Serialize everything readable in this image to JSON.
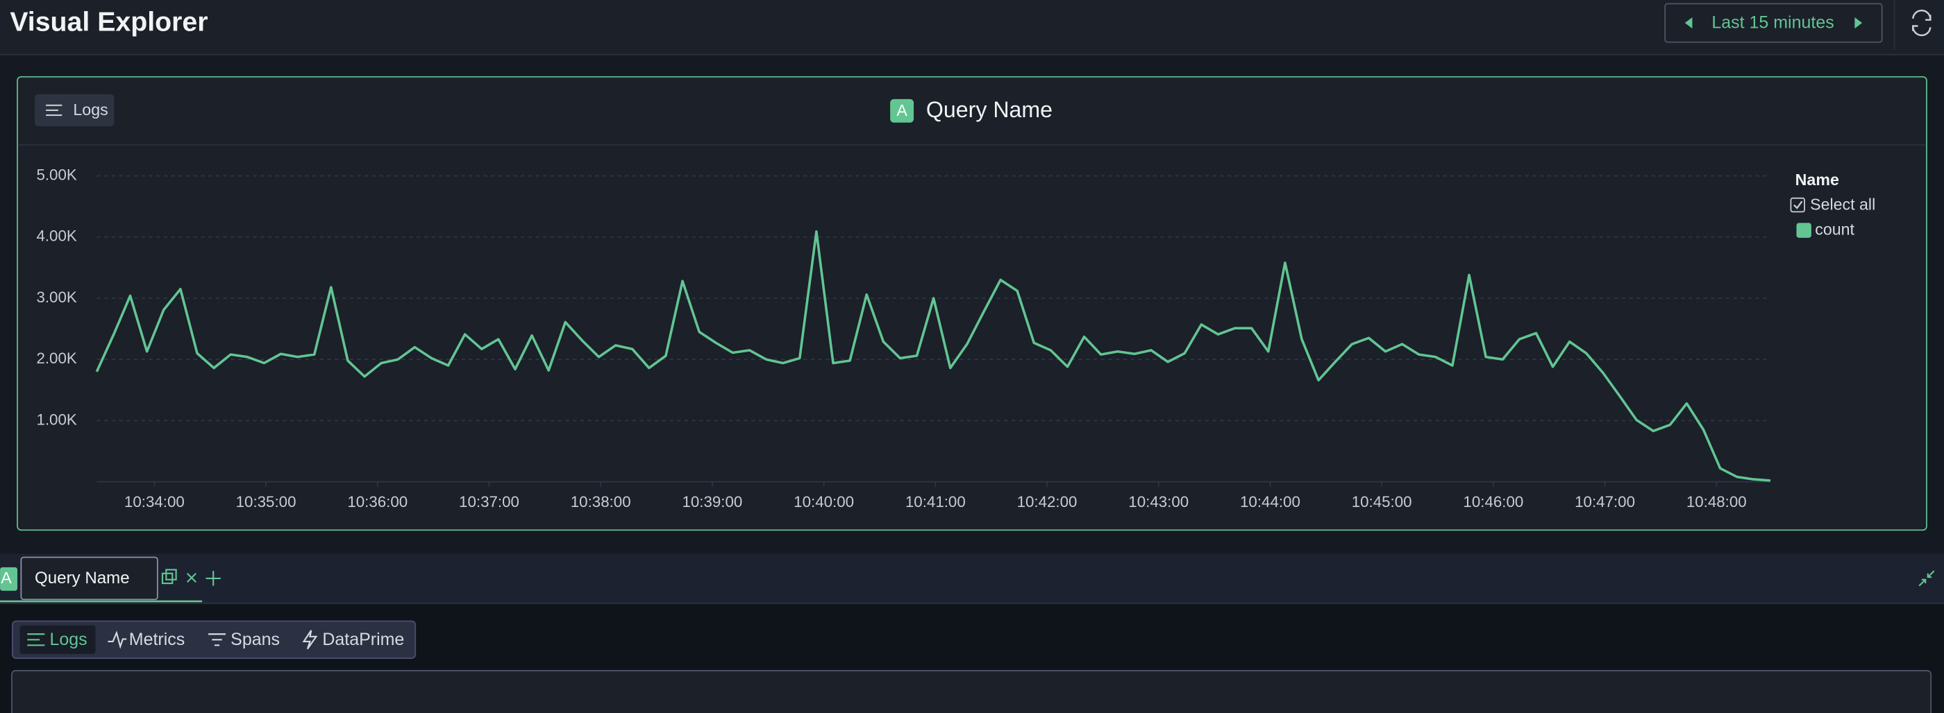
{
  "header": {
    "title": "Visual Explorer",
    "time_range": "Last 15 minutes"
  },
  "panel": {
    "source_button": "Logs"
  },
  "chart_data": {
    "type": "line",
    "badge": "A",
    "title": "Query Name",
    "legend_title": "Name",
    "legend_select_all": "Select all",
    "x": [
      "10:33:29",
      "10:33:38",
      "10:33:47",
      "10:33:56",
      "10:34:05",
      "10:34:14",
      "10:34:23",
      "10:34:32",
      "10:34:41",
      "10:34:50",
      "10:34:59",
      "10:35:08",
      "10:35:17",
      "10:35:26",
      "10:35:35",
      "10:35:44",
      "10:35:53",
      "10:36:02",
      "10:36:11",
      "10:36:20",
      "10:36:29",
      "10:36:38",
      "10:36:47",
      "10:36:56",
      "10:37:05",
      "10:37:14",
      "10:37:23",
      "10:37:32",
      "10:37:41",
      "10:37:50",
      "10:37:59",
      "10:38:08",
      "10:38:17",
      "10:38:26",
      "10:38:35",
      "10:38:44",
      "10:38:53",
      "10:39:02",
      "10:39:11",
      "10:39:20",
      "10:39:29",
      "10:39:38",
      "10:39:47",
      "10:39:56",
      "10:40:05",
      "10:40:14",
      "10:40:23",
      "10:40:32",
      "10:40:41",
      "10:40:50",
      "10:40:59",
      "10:41:08",
      "10:41:17",
      "10:41:26",
      "10:41:35",
      "10:41:44",
      "10:41:53",
      "10:42:02",
      "10:42:11",
      "10:42:20",
      "10:42:29",
      "10:42:38",
      "10:42:47",
      "10:42:56",
      "10:43:05",
      "10:43:14",
      "10:43:23",
      "10:43:32",
      "10:43:41",
      "10:43:50",
      "10:43:59",
      "10:44:08",
      "10:44:17",
      "10:44:26",
      "10:44:35",
      "10:44:44",
      "10:44:53",
      "10:45:02",
      "10:45:11",
      "10:45:20",
      "10:45:29",
      "10:45:38",
      "10:45:47",
      "10:45:56",
      "10:46:05",
      "10:46:14",
      "10:46:23",
      "10:46:32",
      "10:46:41",
      "10:46:50",
      "10:46:59",
      "10:47:08",
      "10:47:17",
      "10:47:26",
      "10:47:35",
      "10:47:44",
      "10:47:53",
      "10:48:02",
      "10:48:11",
      "10:48:20",
      "10:48:29"
    ],
    "series": [
      {
        "name": "count",
        "color": "#62c592",
        "values": [
          1800,
          2400,
          3040,
          2130,
          2810,
          3150,
          2100,
          1860,
          2080,
          2040,
          1940,
          2090,
          2040,
          2080,
          3180,
          1980,
          1720,
          1940,
          2000,
          2200,
          2020,
          1900,
          2410,
          2170,
          2330,
          1840,
          2390,
          1820,
          2610,
          2310,
          2040,
          2230,
          2170,
          1860,
          2060,
          3280,
          2450,
          2270,
          2110,
          2150,
          2000,
          1940,
          2020,
          4090,
          1940,
          1980,
          3060,
          2290,
          2020,
          2060,
          3000,
          1860,
          2250,
          2780,
          3300,
          3120,
          2270,
          2150,
          1880,
          2370,
          2080,
          2130,
          2090,
          2150,
          1960,
          2100,
          2570,
          2410,
          2510,
          2510,
          2130,
          3580,
          2330,
          1660,
          1960,
          2250,
          2350,
          2130,
          2250,
          2080,
          2040,
          1900,
          3380,
          2040,
          2000,
          2330,
          2430,
          1880,
          2290,
          2100,
          1780,
          1400,
          1010,
          830,
          930,
          1280,
          850,
          220,
          80,
          40,
          20
        ]
      }
    ],
    "xlim": [
      "10:33:29",
      "10:48:29"
    ],
    "xticks": [
      "10:34:00",
      "10:35:00",
      "10:36:00",
      "10:37:00",
      "10:38:00",
      "10:39:00",
      "10:40:00",
      "10:41:00",
      "10:42:00",
      "10:43:00",
      "10:44:00",
      "10:45:00",
      "10:46:00",
      "10:47:00",
      "10:48:00"
    ],
    "ylim": [
      0,
      5000
    ],
    "yticks": [
      {
        "value": 1000,
        "label": "1.00K"
      },
      {
        "value": 2000,
        "label": "2.00K"
      },
      {
        "value": 3000,
        "label": "3.00K"
      },
      {
        "value": 4000,
        "label": "4.00K"
      },
      {
        "value": 5000,
        "label": "5.00K"
      }
    ],
    "grid": true
  },
  "query_tabs": [
    {
      "badge": "A",
      "name": "Query Name"
    }
  ],
  "query_types": [
    "Logs",
    "Metrics",
    "Spans",
    "DataPrime"
  ]
}
